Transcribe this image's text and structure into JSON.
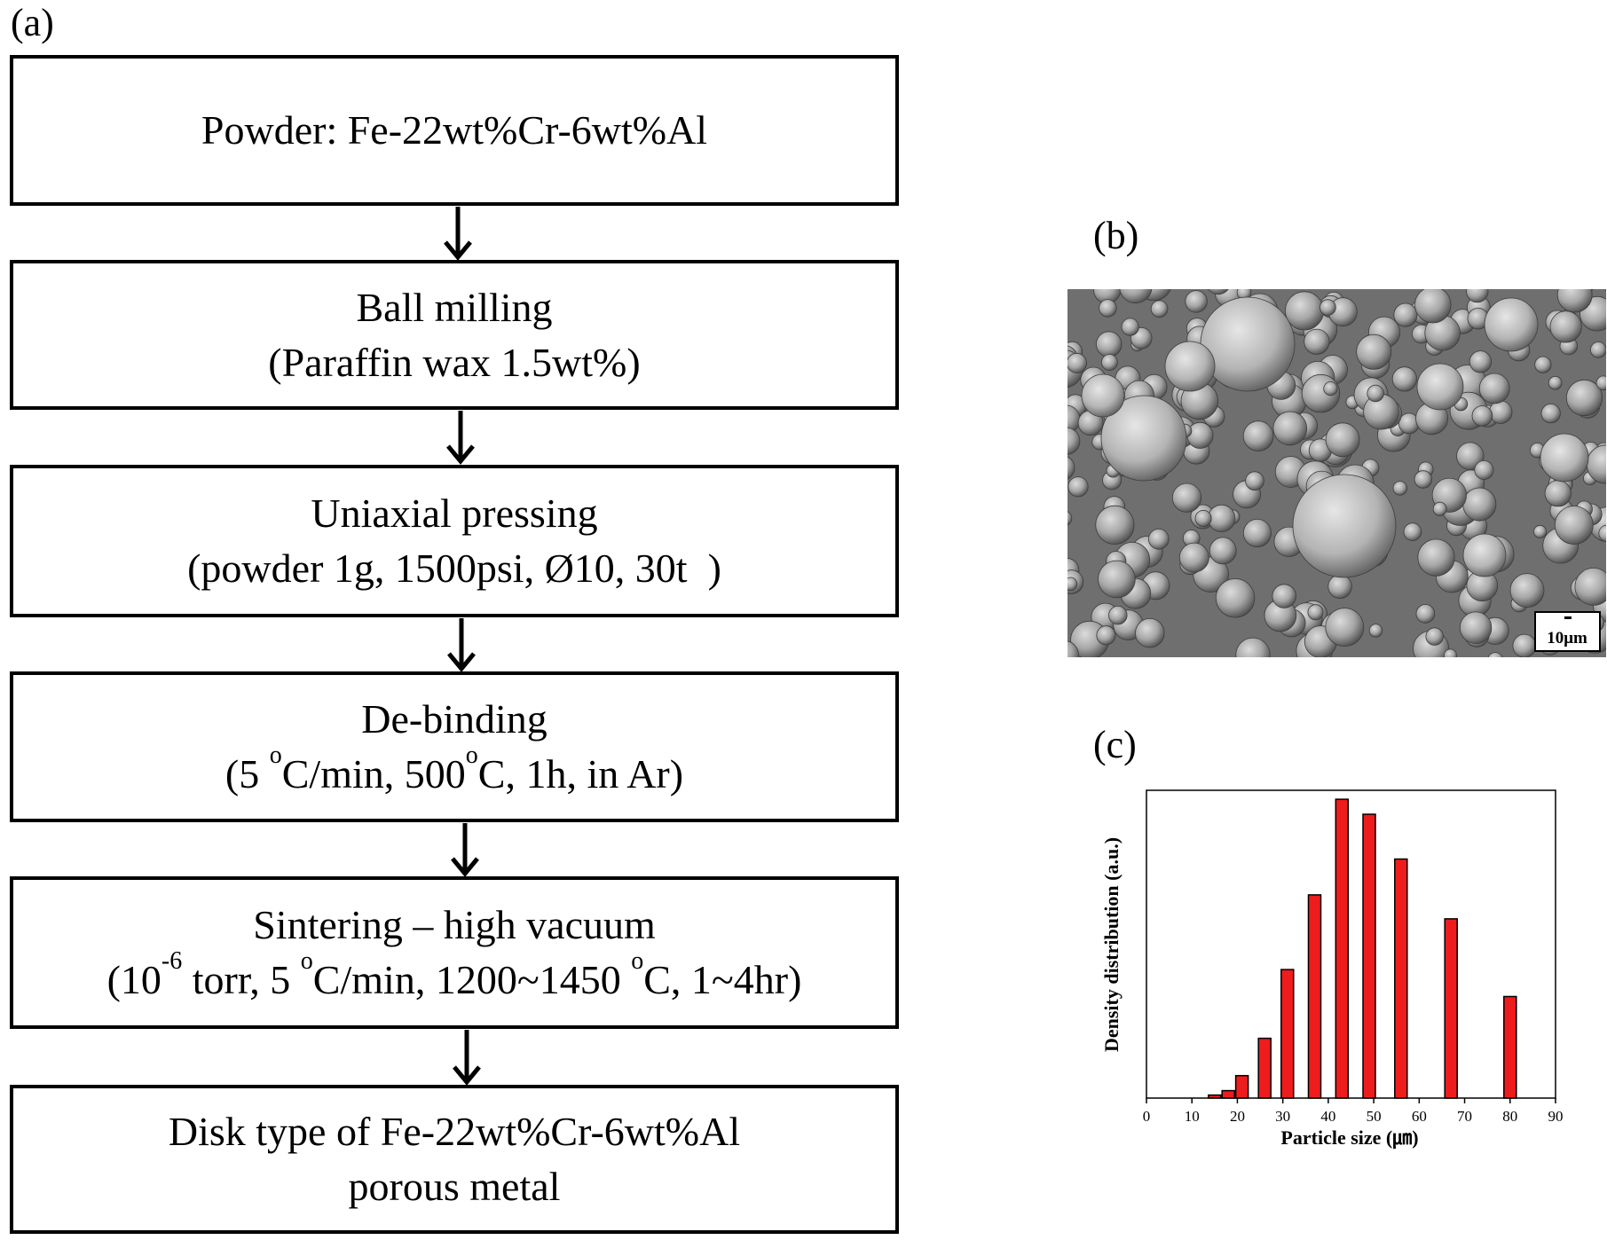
{
  "labels": {
    "a": "(a)",
    "b": "(b)",
    "c": "(c)"
  },
  "flowchart": {
    "steps": [
      {
        "line1": "Powder: Fe-22wt%Cr-6wt%Al"
      },
      {
        "line1": "Ball milling",
        "line2": "(Paraffin wax 1.5wt%)"
      },
      {
        "line1": "Uniaxial pressing",
        "line2": "(powder 1g, 1500psi, Ø10, 30t  )"
      },
      {
        "line1": "De-binding",
        "line2_a": "(5 ",
        "line2_sup1": "o",
        "line2_b": "C/min, 500",
        "line2_sup2": "o",
        "line2_c": "C, 1h, in Ar)"
      },
      {
        "line1": "Sintering – high vacuum",
        "line2_a": "(10",
        "line2_sup1": "-6",
        "line2_b": " torr, 5 ",
        "line2_sup2": "o",
        "line2_c": "C/min, 1200~1450 ",
        "line2_sup3": "o",
        "line2_d": "C, 1~4hr)"
      },
      {
        "line1": "Disk type of Fe-22wt%Cr-6wt%Al",
        "line2": "porous metal"
      }
    ]
  },
  "sem_image": {
    "scale_bar": "10μm"
  },
  "colors": {
    "bar_fill": "#ee1c1c",
    "bar_stroke": "#000000",
    "sem_bg": "#6f6f6f"
  },
  "chart_data": {
    "type": "bar",
    "xlabel": "Particle size (㎛)",
    "ylabel": "Density distribution (a.u.)",
    "xlim": [
      0,
      90
    ],
    "ylim": [
      0,
      1.03
    ],
    "xticks": [
      0,
      10,
      20,
      30,
      40,
      50,
      60,
      70,
      80,
      90
    ],
    "x": [
      15,
      18,
      21,
      26,
      31,
      37,
      43,
      49,
      56,
      67,
      80
    ],
    "values": [
      0.01,
      0.025,
      0.075,
      0.2,
      0.43,
      0.68,
      1.0,
      0.95,
      0.8,
      0.6,
      0.34
    ],
    "grid": false
  }
}
